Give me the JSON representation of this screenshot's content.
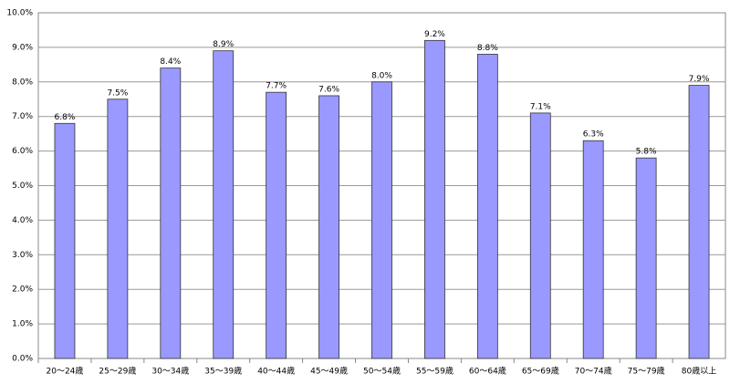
{
  "chart_data": {
    "type": "bar",
    "categories": [
      "20～24歳",
      "25～29歳",
      "30～34歳",
      "35～39歳",
      "40～44歳",
      "45～49歳",
      "50～54歳",
      "55～59歳",
      "60～64歳",
      "65～69歳",
      "70～74歳",
      "75～79歳",
      "80歳以上"
    ],
    "values": [
      6.8,
      7.5,
      8.4,
      8.9,
      7.7,
      7.6,
      8.0,
      9.2,
      8.8,
      7.1,
      6.3,
      5.8,
      7.9
    ],
    "value_labels": [
      "6.8%",
      "7.5%",
      "8.4%",
      "8.9%",
      "7.7%",
      "7.6%",
      "8.0%",
      "9.2%",
      "8.8%",
      "7.1%",
      "6.3%",
      "5.8%",
      "7.9%"
    ],
    "color": "#9999ff",
    "ylim": [
      0,
      10
    ],
    "yticks": [
      {
        "value": 0,
        "label": "0.0%"
      },
      {
        "value": 1,
        "label": "1.0%"
      },
      {
        "value": 2,
        "label": "2.0%"
      },
      {
        "value": 3,
        "label": "3.0%"
      },
      {
        "value": 4,
        "label": "4.0%"
      },
      {
        "value": 5,
        "label": "5.0%"
      },
      {
        "value": 6,
        "label": "6.0%"
      },
      {
        "value": 7,
        "label": "7.0%"
      },
      {
        "value": 8,
        "label": "8.0%"
      },
      {
        "value": 9,
        "label": "9.0%"
      },
      {
        "value": 10,
        "label": "10.0%"
      }
    ],
    "grid": true
  }
}
